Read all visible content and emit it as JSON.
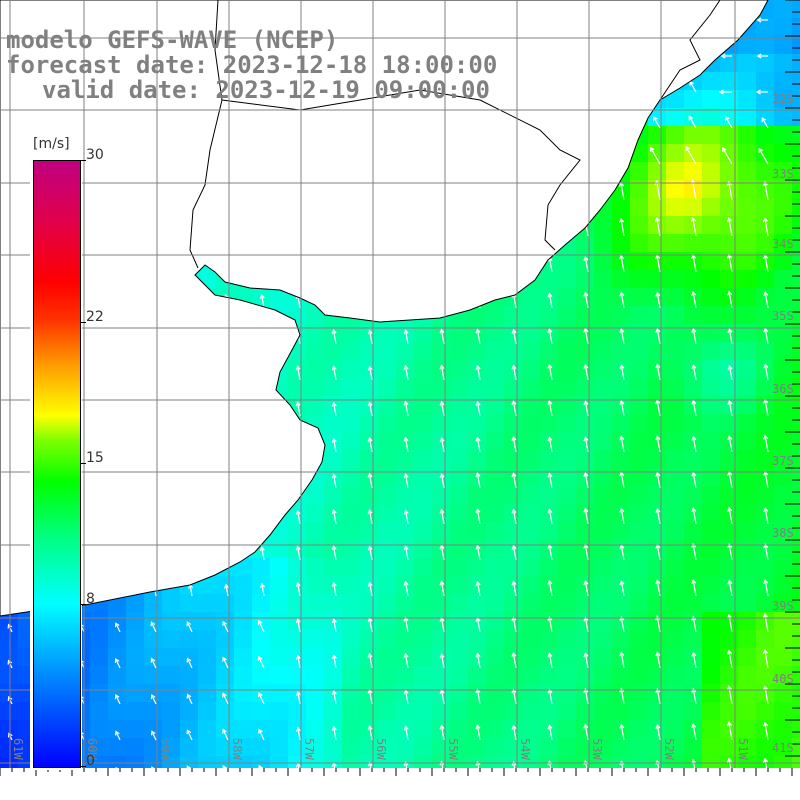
{
  "title": {
    "line1": "modelo GEFS-WAVE (NCEP)",
    "line2": "forecast date: 2023-12-18 18:00:00",
    "line3": "valid date: 2023-12-19 09:00:00"
  },
  "colorbar": {
    "unit": "[m/s]",
    "labels": [
      "30",
      "22",
      "15",
      "8",
      "0"
    ],
    "values": [
      30,
      22,
      15,
      8,
      0
    ]
  },
  "lon_labels": [
    "61W",
    "60W",
    "59W",
    "58W",
    "57W",
    "56W",
    "55W",
    "54W",
    "53W",
    "52W",
    "51W"
  ],
  "lat_labels": [
    "32S",
    "33S",
    "34S",
    "35S",
    "36S",
    "37S",
    "38S",
    "39S",
    "40S",
    "41S"
  ],
  "colors": {
    "land": "#ffffff",
    "grid": "#808080",
    "label": "#808080",
    "arrow": "#ffffff"
  }
}
